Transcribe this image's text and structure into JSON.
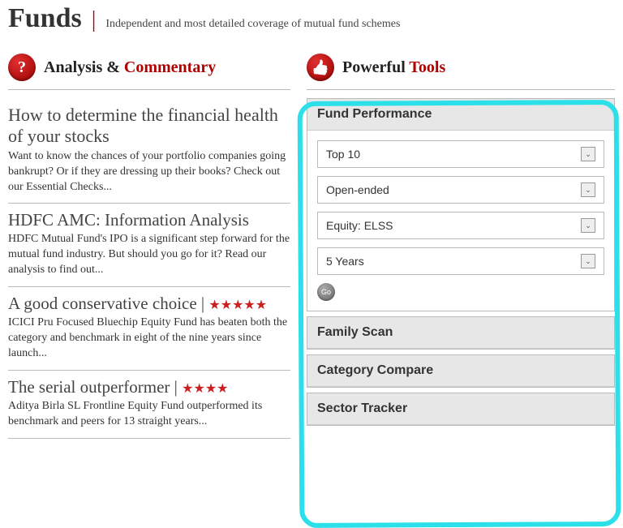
{
  "header": {
    "title": "Funds",
    "tagline": "Independent and most detailed coverage of mutual fund schemes"
  },
  "left": {
    "section_title_a": "Analysis & ",
    "section_title_b": "Commentary",
    "articles": [
      {
        "title": "How to determine the financial health of your stocks",
        "desc": "Want to know the chances of your portfolio companies going bankrupt? Or if they are dressing up their books? Check out our Essential Checks...",
        "stars": ""
      },
      {
        "title": "HDFC AMC: Information Analysis",
        "desc": "HDFC Mutual Fund's IPO is a significant step forward for the mutual fund industry. But should you go for it? Read our analysis to find out...",
        "stars": ""
      },
      {
        "title": "A good conservative choice",
        "desc": "ICICI Pru Focused Bluechip Equity Fund has beaten both the category and benchmark in eight of the nine years since launch...",
        "stars": "★★★★★"
      },
      {
        "title": "The serial outperformer",
        "desc": "Aditya Birla SL Frontline Equity Fund outperformed its benchmark and peers for 13 straight years...",
        "stars": "★★★★"
      }
    ]
  },
  "right": {
    "section_title_a": "Powerful ",
    "section_title_b": "Tools",
    "fund_perf": {
      "title": "Fund Performance",
      "selects": {
        "rank": "Top 10",
        "type": "Open-ended",
        "category": "Equity: ELSS",
        "period": "5 Years"
      },
      "go": "Go"
    },
    "panels": {
      "family_scan": "Family Scan",
      "category_compare": "Category Compare",
      "sector_tracker": "Sector Tracker"
    }
  }
}
